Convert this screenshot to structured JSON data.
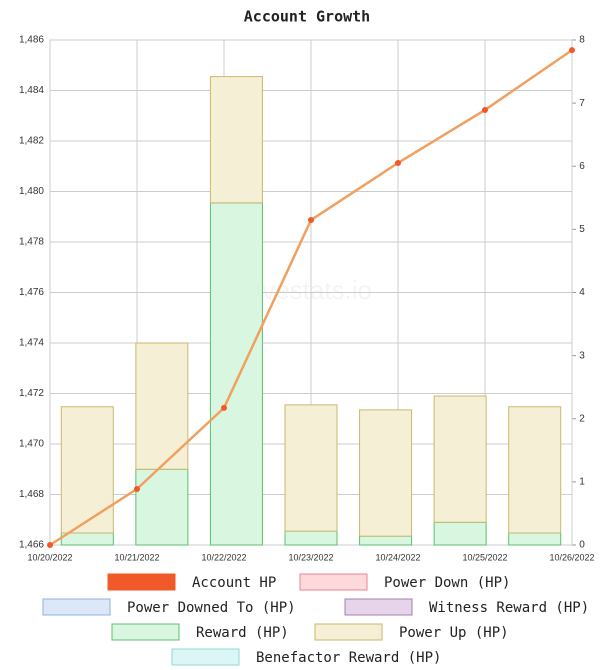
{
  "chart_data": {
    "type": "combo",
    "title": "Account Growth",
    "watermark": "hivestats.io",
    "x": [
      "10/20/2022",
      "10/21/2022",
      "10/22/2022",
      "10/23/2022",
      "10/24/2022",
      "10/25/2022",
      "10/26/2022"
    ],
    "ylim": [
      1466,
      1486
    ],
    "yticks": [
      {
        "value": 1466,
        "label": "1,466"
      },
      {
        "value": 1468,
        "label": "1,468"
      },
      {
        "value": 1470,
        "label": "1,470"
      },
      {
        "value": 1472,
        "label": "1,472"
      },
      {
        "value": 1474,
        "label": "1,474"
      },
      {
        "value": 1476,
        "label": "1,476"
      },
      {
        "value": 1478,
        "label": "1,478"
      },
      {
        "value": 1480,
        "label": "1,480"
      },
      {
        "value": 1482,
        "label": "1,482"
      },
      {
        "value": 1484,
        "label": "1,484"
      },
      {
        "value": 1486,
        "label": "1,486"
      }
    ],
    "y2lim": [
      0,
      8
    ],
    "y2ticks": [
      0,
      1,
      2,
      3,
      4,
      5,
      6,
      7,
      8
    ],
    "grid": true,
    "series": [
      {
        "name": "Account HP",
        "type": "line",
        "color": "#f05a28",
        "line_color": "#f0a060",
        "values": [
          1466.0,
          1468.22,
          1471.43,
          1478.87,
          1481.13,
          1483.23,
          1485.6
        ]
      },
      {
        "name": "Power Down (HP)",
        "type": "bar",
        "axis": "y2",
        "color": "#fdd9dc",
        "border": "#f08090",
        "values": [
          0,
          0,
          0,
          0,
          0,
          0,
          0
        ]
      },
      {
        "name": "Power Downed To (HP)",
        "type": "bar",
        "axis": "y2",
        "color": "#dce8f8",
        "border": "#90b0e0",
        "values": [
          0,
          0,
          0,
          0,
          0,
          0,
          0
        ]
      },
      {
        "name": "Witness Reward (HP)",
        "type": "bar",
        "axis": "y2",
        "color": "#e6d5ea",
        "border": "#a080b0",
        "values": [
          0,
          0,
          0,
          0,
          0,
          0,
          0
        ]
      },
      {
        "name": "Reward (HP)",
        "type": "bar",
        "axis": "y2",
        "color": "#d9f7e0",
        "border": "#5cc070",
        "values": [
          0.19,
          1.2,
          5.42,
          0.22,
          0.14,
          0.36,
          0.19
        ]
      },
      {
        "name": "Power Up (HP)",
        "type": "bar",
        "axis": "y2",
        "color": "#f5f0d5",
        "border": "#c8b870",
        "values": [
          2.0,
          2.0,
          2.0,
          2.0,
          2.0,
          2.0,
          2.0
        ]
      },
      {
        "name": "Benefactor Reward (HP)",
        "type": "bar",
        "axis": "y2",
        "color": "#dcf5f5",
        "border": "#90d8d8",
        "values": [
          0,
          0,
          0,
          0,
          0,
          0,
          0
        ]
      }
    ]
  }
}
